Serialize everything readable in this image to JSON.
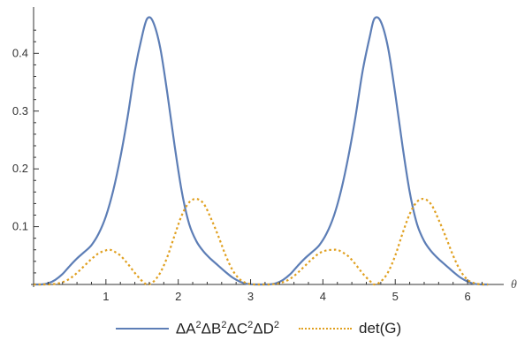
{
  "chart_data": {
    "type": "line",
    "xlabel": "θ",
    "ylabel": "",
    "xlim": [
      0,
      6.5
    ],
    "ylim": [
      0,
      0.48
    ],
    "x_ticks": [
      1,
      2,
      3,
      4,
      5,
      6
    ],
    "x_tick_labels": [
      "1",
      "2",
      "3",
      "4",
      "5",
      "6"
    ],
    "y_ticks": [
      0.1,
      0.2,
      0.3,
      0.4
    ],
    "y_tick_labels": [
      "0.1",
      "0.2",
      "0.3",
      "0.4"
    ],
    "grid": false,
    "legend_position": "bottom",
    "series": [
      {
        "name": "ΔA²ΔB²ΔC²ΔD²",
        "style": "solid",
        "color": "#5d7eb6",
        "x": [
          0,
          0.1,
          0.2,
          0.3,
          0.4,
          0.5,
          0.6,
          0.7,
          0.8,
          0.9,
          1.0,
          1.1,
          1.2,
          1.3,
          1.4,
          1.5,
          1.5708,
          1.65,
          1.75,
          1.85,
          1.95,
          2.05,
          2.15,
          2.25,
          2.35,
          2.45,
          2.55,
          2.65,
          2.75,
          2.85,
          2.95,
          3.05,
          3.1416,
          3.25,
          3.35,
          3.45,
          3.55,
          3.65,
          3.75,
          3.85,
          3.95,
          4.05,
          4.15,
          4.25,
          4.35,
          4.45,
          4.55,
          4.65,
          4.7124,
          4.8,
          4.9,
          5.0,
          5.1,
          5.2,
          5.3,
          5.4,
          5.5,
          5.6,
          5.7,
          5.8,
          5.9,
          6.0,
          6.1,
          6.2,
          6.2832
        ],
        "y": [
          0.0,
          0.0,
          0.002,
          0.008,
          0.018,
          0.032,
          0.045,
          0.056,
          0.068,
          0.088,
          0.118,
          0.162,
          0.22,
          0.29,
          0.37,
          0.43,
          0.46,
          0.455,
          0.41,
          0.33,
          0.24,
          0.16,
          0.105,
          0.075,
          0.057,
          0.044,
          0.033,
          0.022,
          0.012,
          0.005,
          0.001,
          0.0,
          0.0,
          0.0,
          0.002,
          0.008,
          0.018,
          0.032,
          0.045,
          0.056,
          0.068,
          0.088,
          0.118,
          0.162,
          0.22,
          0.29,
          0.37,
          0.43,
          0.46,
          0.455,
          0.41,
          0.33,
          0.24,
          0.16,
          0.105,
          0.075,
          0.057,
          0.044,
          0.033,
          0.022,
          0.012,
          0.005,
          0.001,
          0.0,
          0.0
        ]
      },
      {
        "name": "det(G)",
        "style": "dotted",
        "color": "#e0a020",
        "x": [
          0,
          0.1,
          0.2,
          0.3,
          0.4,
          0.5,
          0.6,
          0.7,
          0.8,
          0.9,
          1.0,
          1.05,
          1.1,
          1.2,
          1.3,
          1.4,
          1.5,
          1.5708,
          1.65,
          1.75,
          1.85,
          1.95,
          2.05,
          2.15,
          2.25,
          2.35,
          2.45,
          2.55,
          2.65,
          2.75,
          2.85,
          2.95,
          3.05,
          3.1416,
          3.25,
          3.35,
          3.45,
          3.55,
          3.65,
          3.75,
          3.85,
          3.95,
          4.05,
          4.15,
          4.2,
          4.25,
          4.35,
          4.45,
          4.55,
          4.65,
          4.7124,
          4.8,
          4.9,
          5.0,
          5.1,
          5.2,
          5.3,
          5.4,
          5.5,
          5.6,
          5.7,
          5.8,
          5.9,
          6.0,
          6.1,
          6.2,
          6.2832
        ],
        "y": [
          0.0,
          0.0,
          0.0,
          0.001,
          0.004,
          0.01,
          0.02,
          0.032,
          0.044,
          0.054,
          0.059,
          0.06,
          0.058,
          0.05,
          0.036,
          0.02,
          0.006,
          0.0,
          0.004,
          0.02,
          0.048,
          0.085,
          0.12,
          0.142,
          0.148,
          0.14,
          0.115,
          0.085,
          0.052,
          0.025,
          0.009,
          0.002,
          0.0,
          0.0,
          0.0,
          0.001,
          0.004,
          0.01,
          0.02,
          0.032,
          0.044,
          0.054,
          0.059,
          0.06,
          0.06,
          0.057,
          0.049,
          0.035,
          0.019,
          0.006,
          0.0,
          0.005,
          0.021,
          0.05,
          0.088,
          0.122,
          0.143,
          0.148,
          0.138,
          0.112,
          0.082,
          0.05,
          0.024,
          0.008,
          0.002,
          0.0,
          0.0
        ]
      }
    ]
  },
  "legend": {
    "series1_prefix": "ΔA",
    "series1_b": "ΔB",
    "series1_c": "ΔC",
    "series1_d": "ΔD",
    "exponent": "2",
    "series2_label": "det(G)"
  }
}
